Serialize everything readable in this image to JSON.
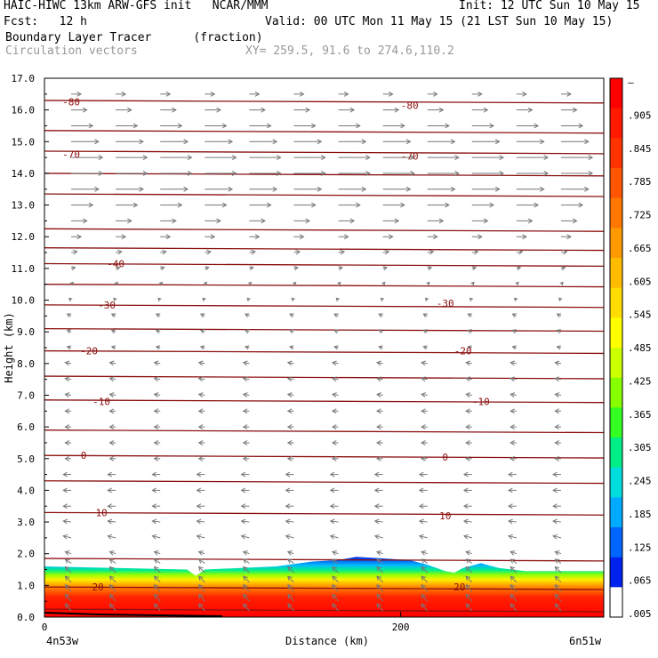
{
  "header": {
    "model_line": "HAIC-HIWC 13km ARW-GFS init   NCAR/MMM",
    "init_line": "Init: 12 UTC Sun 10 May 15",
    "fcst_line": "Fcst:   12 h",
    "valid_line": "Valid: 00 UTC Mon 11 May 15 (21 LST Sun 10 May 15)",
    "field_line": "Boundary Layer Tracer      (fraction)",
    "vectors_line": "Circulation vectors",
    "xy_line": "XY= 259.5, 91.6 to 274.6,110.2"
  },
  "chart_data": {
    "type": "heatmap",
    "xlabel": "Distance (km)",
    "ylabel": "Height (km)",
    "xlim": [
      0,
      314
    ],
    "ylim": [
      0,
      17
    ],
    "y_ticks": [
      "0.0",
      "1.0",
      "2.0",
      "3.0",
      "4.0",
      "5.0",
      "6.0",
      "7.0",
      "8.0",
      "9.0",
      "10.0",
      "11.0",
      "12.0",
      "13.0",
      "14.0",
      "15.0",
      "16.0",
      "17.0"
    ],
    "x_ticks": [
      {
        "value": 0,
        "label": "0"
      },
      {
        "value": 200,
        "label": "200"
      }
    ],
    "x_end_labels": {
      "left": "4n53w",
      "right": "6n51w"
    },
    "colorbar": {
      "labels": [
        "–",
        ".905",
        ".845",
        ".785",
        ".725",
        ".665",
        ".605",
        ".545",
        ".485",
        ".425",
        ".365",
        ".305",
        ".245",
        ".185",
        ".125",
        ".065",
        ".005"
      ],
      "colors": [
        "#ff0000",
        "#ff1a00",
        "#ff3300",
        "#ff5500",
        "#ff7700",
        "#ff9900",
        "#ffbb00",
        "#ffdd00",
        "#ffff00",
        "#ccff00",
        "#88ff00",
        "#33ff22",
        "#00ee88",
        "#00dddd",
        "#00aaff",
        "#0066ff",
        "#0022ee",
        "#ffffff"
      ]
    },
    "tracer_layer": {
      "top_km_x": [
        0,
        40,
        80,
        85,
        90,
        130,
        150,
        165,
        175,
        190,
        205,
        215,
        225,
        230,
        235,
        245,
        255,
        270,
        314
      ],
      "top_km_y": [
        1.6,
        1.55,
        1.5,
        1.3,
        1.5,
        1.6,
        1.75,
        1.8,
        1.9,
        1.85,
        1.8,
        1.65,
        1.45,
        1.4,
        1.55,
        1.7,
        1.55,
        1.45,
        1.45
      ]
    },
    "temperature_contours": {
      "label_values": [
        {
          "text": "-80",
          "x": 15,
          "y": 16.25
        },
        {
          "text": "-80",
          "x": 205,
          "y": 16.15
        },
        {
          "text": "-70",
          "x": 15,
          "y": 14.6
        },
        {
          "text": "-70",
          "x": 205,
          "y": 14.55
        },
        {
          "text": "-40",
          "x": 40,
          "y": 11.15
        },
        {
          "text": "-30",
          "x": 35,
          "y": 9.85
        },
        {
          "text": "-30",
          "x": 225,
          "y": 9.9
        },
        {
          "text": "-20",
          "x": 25,
          "y": 8.4
        },
        {
          "text": "-20",
          "x": 235,
          "y": 8.4
        },
        {
          "text": "-10",
          "x": 32,
          "y": 6.8
        },
        {
          "text": "-10",
          "x": 245,
          "y": 6.8
        },
        {
          "text": "0",
          "x": 22,
          "y": 5.1
        },
        {
          "text": "0",
          "x": 225,
          "y": 5.05
        },
        {
          "text": "10",
          "x": 32,
          "y": 3.3
        },
        {
          "text": "10",
          "x": 225,
          "y": 3.2
        },
        {
          "text": "20",
          "x": 30,
          "y": 0.95
        },
        {
          "text": "20",
          "x": 233,
          "y": 0.95
        }
      ],
      "line_heights_km": [
        16.3,
        15.35,
        14.7,
        14.0,
        13.35,
        12.25,
        11.65,
        11.15,
        10.5,
        9.85,
        9.1,
        8.4,
        7.6,
        6.85,
        5.9,
        5.1,
        4.3,
        3.3,
        1.85,
        0.95,
        0.25
      ]
    },
    "vector_columns_km": [
      15,
      40,
      65,
      90,
      115,
      140,
      165,
      190,
      215,
      240,
      265,
      290
    ],
    "vector_levels_km": [
      0.2,
      0.5,
      0.8,
      1.1,
      1.4,
      1.7,
      2.0,
      2.5,
      3.0,
      3.5,
      4.0,
      4.5,
      5.0,
      5.5,
      6.0,
      6.5,
      7.0,
      7.5,
      8.0,
      8.5,
      9.0,
      9.5,
      10.0,
      10.5,
      11.0,
      11.5,
      12.0,
      12.5,
      13.0,
      13.5,
      14.0,
      14.5,
      15.0,
      15.5,
      16.0,
      16.5
    ],
    "wind_u_by_level": [
      -3,
      -3,
      -3,
      -3,
      -3,
      -3,
      -3,
      -4,
      -4,
      -4,
      -4,
      -4,
      -3,
      -3,
      -3,
      -3,
      -3,
      -3,
      -3,
      -2,
      -2,
      -2,
      -1,
      1,
      2,
      3,
      5,
      8,
      11,
      14,
      16,
      16,
      14,
      11,
      8,
      5
    ],
    "wind_w_by_level": [
      3.5,
      3.5,
      3.5,
      3,
      3,
      2,
      1,
      1,
      0.5,
      0,
      0,
      0,
      0,
      0,
      0,
      0,
      0.5,
      0.5,
      0.5,
      0.5,
      0.8,
      1,
      1,
      1,
      0.5,
      0.5,
      0,
      0,
      0,
      0,
      0,
      0,
      0,
      0,
      0,
      0
    ]
  }
}
